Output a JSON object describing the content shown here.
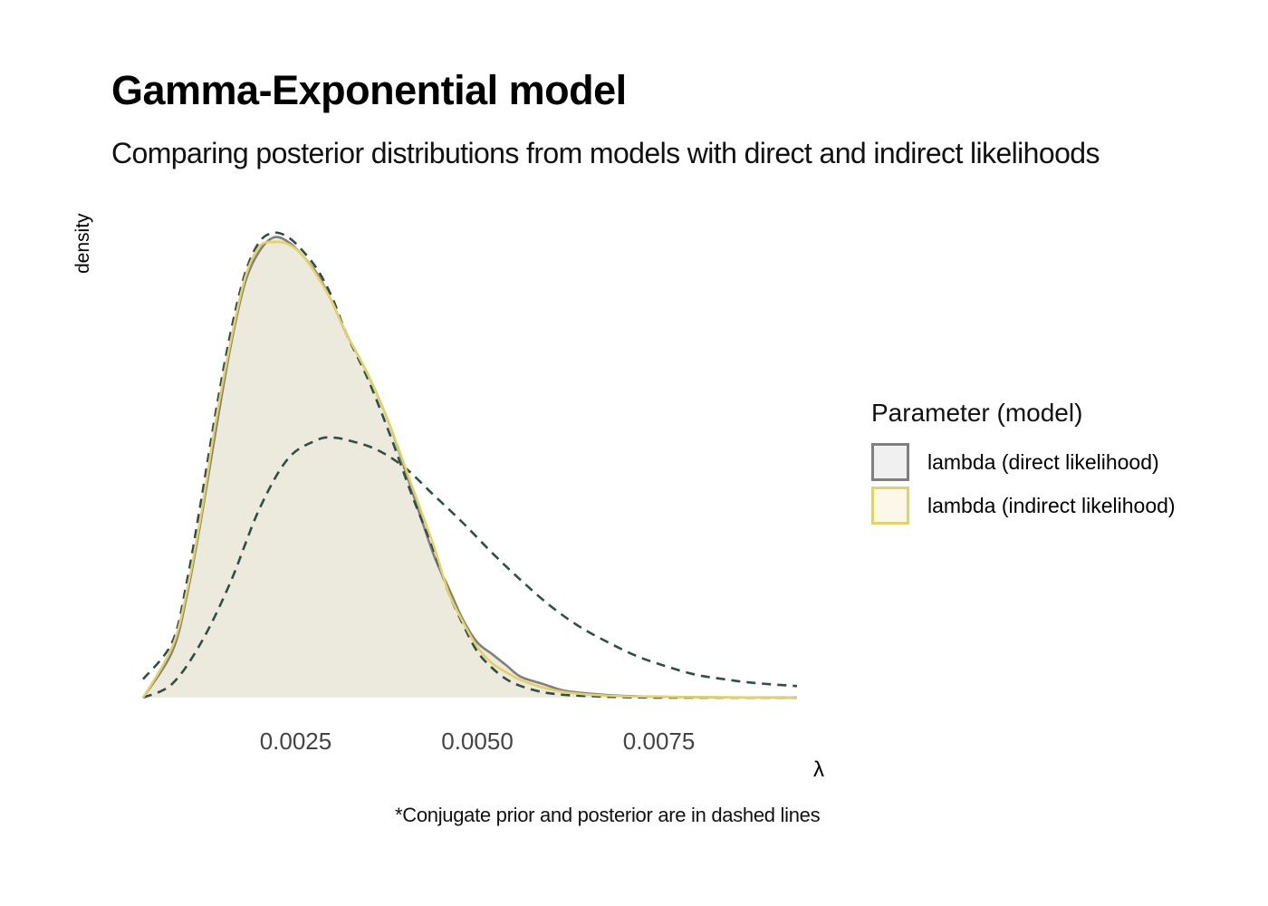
{
  "chart_data": {
    "type": "area",
    "title": "Gamma-Exponential model",
    "subtitle": "Comparing posterior distributions from models with direct and indirect likelihoods",
    "xlabel": "λ",
    "ylabel": "density",
    "caption": "*Conjugate prior and posterior are in dashed lines",
    "xlim": [
      0.0004,
      0.0094
    ],
    "x_ticks": [
      0.0025,
      0.005,
      0.0075
    ],
    "x_tick_labels": [
      "0.0025",
      "0.0050",
      "0.0075"
    ],
    "grid": false,
    "legend": {
      "title": "Parameter (model)",
      "position": "right",
      "entries": [
        {
          "label": "lambda (direct likelihood)",
          "fill": "#f0f0f0",
          "stroke": "#808080"
        },
        {
          "label": "lambda (indirect likelihood)",
          "fill": "#fbf8ea",
          "stroke": "#e5d165"
        }
      ]
    },
    "series": [
      {
        "name": "lambda (direct likelihood)",
        "style": "filled",
        "fill": "#ece9dd",
        "stroke": "#808080",
        "x": [
          0.0004,
          0.0008,
          0.001,
          0.0012,
          0.0014,
          0.0016,
          0.0018,
          0.002,
          0.0022,
          0.0024,
          0.0026,
          0.0028,
          0.003,
          0.0032,
          0.0035,
          0.0038,
          0.0041,
          0.0044,
          0.0046,
          0.0048,
          0.005,
          0.0052,
          0.0054,
          0.0056,
          0.0059,
          0.0062,
          0.0066,
          0.007,
          0.0075,
          0.008,
          0.0094
        ],
        "y": [
          0.0,
          0.1,
          0.22,
          0.39,
          0.58,
          0.76,
          0.9,
          0.97,
          1.0,
          0.99,
          0.96,
          0.92,
          0.86,
          0.79,
          0.7,
          0.59,
          0.45,
          0.31,
          0.24,
          0.17,
          0.12,
          0.095,
          0.07,
          0.045,
          0.03,
          0.015,
          0.008,
          0.004,
          0.002,
          0.001,
          0.0
        ]
      },
      {
        "name": "lambda (indirect likelihood)",
        "style": "line",
        "stroke": "#e5d165",
        "x": [
          0.0004,
          0.0008,
          0.001,
          0.0012,
          0.0014,
          0.0016,
          0.0018,
          0.002,
          0.0022,
          0.0024,
          0.0026,
          0.0028,
          0.003,
          0.0032,
          0.0035,
          0.0038,
          0.0041,
          0.0044,
          0.0046,
          0.0048,
          0.005,
          0.0052,
          0.0054,
          0.0056,
          0.0059,
          0.0062,
          0.0066,
          0.007,
          0.0075,
          0.008,
          0.0094
        ],
        "y": [
          0.0,
          0.11,
          0.23,
          0.4,
          0.6,
          0.77,
          0.91,
          0.98,
          0.99,
          0.985,
          0.96,
          0.915,
          0.86,
          0.79,
          0.7,
          0.59,
          0.46,
          0.33,
          0.23,
          0.165,
          0.11,
          0.075,
          0.055,
          0.038,
          0.022,
          0.012,
          0.006,
          0.003,
          0.002,
          0.001,
          0.0
        ]
      },
      {
        "name": "conjugate posterior",
        "style": "dashed",
        "stroke": "#2f4f46",
        "x": [
          0.0004,
          0.0008,
          0.001,
          0.0012,
          0.0014,
          0.0016,
          0.0018,
          0.002,
          0.0022,
          0.0024,
          0.0026,
          0.0028,
          0.003,
          0.0032,
          0.0035,
          0.0038,
          0.0041,
          0.0044,
          0.0046,
          0.0048,
          0.005,
          0.0052,
          0.0054,
          0.0056,
          0.0059,
          0.0062,
          0.0066,
          0.007,
          0.0075,
          0.008,
          0.0094
        ],
        "y": [
          0.04,
          0.12,
          0.25,
          0.43,
          0.62,
          0.79,
          0.92,
          0.99,
          1.01,
          1.0,
          0.97,
          0.93,
          0.87,
          0.79,
          0.69,
          0.57,
          0.44,
          0.32,
          0.23,
          0.16,
          0.1,
          0.065,
          0.04,
          0.025,
          0.012,
          0.006,
          0.003,
          0.001,
          0.0,
          0.0,
          0.0
        ]
      },
      {
        "name": "conjugate prior",
        "style": "dashed",
        "stroke": "#2f4f46",
        "x": [
          0.0004,
          0.0008,
          0.0012,
          0.0016,
          0.002,
          0.0024,
          0.0028,
          0.003,
          0.0032,
          0.0036,
          0.004,
          0.0044,
          0.0048,
          0.0052,
          0.0056,
          0.006,
          0.0064,
          0.0068,
          0.0072,
          0.0076,
          0.008,
          0.0084,
          0.0088,
          0.0094
        ],
        "y": [
          0.0,
          0.03,
          0.12,
          0.25,
          0.41,
          0.52,
          0.56,
          0.565,
          0.56,
          0.54,
          0.5,
          0.44,
          0.38,
          0.315,
          0.255,
          0.2,
          0.155,
          0.12,
          0.09,
          0.068,
          0.05,
          0.04,
          0.032,
          0.025
        ]
      }
    ]
  }
}
